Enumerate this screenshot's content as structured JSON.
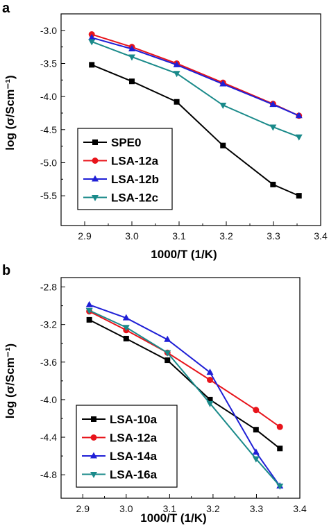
{
  "chart_data": [
    {
      "type": "line",
      "panel_label": "a",
      "xlabel": "1000/T (1/K)",
      "ylabel": "log (σ/Scm⁻¹)",
      "xlim": [
        2.85,
        3.4
      ],
      "ylim": [
        -5.95,
        -2.75
      ],
      "x_ticks": [
        2.9,
        3.0,
        3.1,
        3.2,
        3.3,
        3.4
      ],
      "y_ticks": [
        -3.0,
        -3.5,
        -4.0,
        -4.5,
        -5.0,
        -5.5
      ],
      "x_tick_labels": [
        "2.9",
        "3.0",
        "3.1",
        "3.2",
        "3.3",
        "3.4"
      ],
      "y_tick_labels": [
        "-3.0",
        "-3.5",
        "-4.0",
        "-4.5",
        "-5.0",
        "-5.5"
      ],
      "x": [
        2.915,
        3.0,
        3.095,
        3.193,
        3.299,
        3.354
      ],
      "legend_position": "bottom-left",
      "grid": false,
      "series": [
        {
          "name": "SPE0",
          "color": "#000000",
          "marker": "square",
          "values": [
            -3.52,
            -3.77,
            -4.08,
            -4.74,
            -5.33,
            -5.5
          ]
        },
        {
          "name": "LSA-12a",
          "color": "#e8141b",
          "marker": "circle",
          "values": [
            -3.06,
            -3.25,
            -3.5,
            -3.79,
            -4.11,
            -4.29
          ]
        },
        {
          "name": "LSA-12b",
          "color": "#1f1fd6",
          "marker": "triangle-up",
          "values": [
            -3.11,
            -3.28,
            -3.52,
            -3.81,
            -4.12,
            -4.29
          ]
        },
        {
          "name": "LSA-12c",
          "color": "#1a8a8a",
          "marker": "triangle-down",
          "values": [
            -3.17,
            -3.4,
            -3.65,
            -4.13,
            -4.46,
            -4.61
          ]
        }
      ]
    },
    {
      "type": "line",
      "panel_label": "b",
      "xlabel": "1000/T (1/K)",
      "ylabel": "log (σ/Scm⁻¹)",
      "xlim": [
        2.85,
        3.4
      ],
      "ylim": [
        -5.05,
        -2.7
      ],
      "x_ticks": [
        2.9,
        3.0,
        3.1,
        3.2,
        3.3,
        3.4
      ],
      "y_ticks": [
        -2.8,
        -3.2,
        -3.6,
        -4.0,
        -4.4,
        -4.8
      ],
      "x_tick_labels": [
        "2.9",
        "3.0",
        "3.1",
        "3.2",
        "3.3",
        "3.4"
      ],
      "y_tick_labels": [
        "-2.8",
        "-3.2",
        "-3.6",
        "-4.0",
        "-4.4",
        "-4.8"
      ],
      "x": [
        2.915,
        3.0,
        3.095,
        3.193,
        3.299,
        3.354
      ],
      "legend_position": "bottom-left",
      "grid": false,
      "series": [
        {
          "name": "LSA-10a",
          "color": "#000000",
          "marker": "square",
          "values": [
            -3.15,
            -3.35,
            -3.58,
            -4.0,
            -4.32,
            -4.52
          ]
        },
        {
          "name": "LSA-12a",
          "color": "#e8141b",
          "marker": "circle",
          "values": [
            -3.06,
            -3.26,
            -3.5,
            -3.79,
            -4.11,
            -4.29
          ]
        },
        {
          "name": "LSA-14a",
          "color": "#1f1fd6",
          "marker": "triangle-up",
          "values": [
            -2.99,
            -3.13,
            -3.36,
            -3.71,
            -4.56,
            -4.92
          ]
        },
        {
          "name": "LSA-16a",
          "color": "#1a8a8a",
          "marker": "triangle-down",
          "values": [
            -3.05,
            -3.23,
            -3.5,
            -4.04,
            -4.63,
            -4.92
          ]
        }
      ]
    }
  ]
}
